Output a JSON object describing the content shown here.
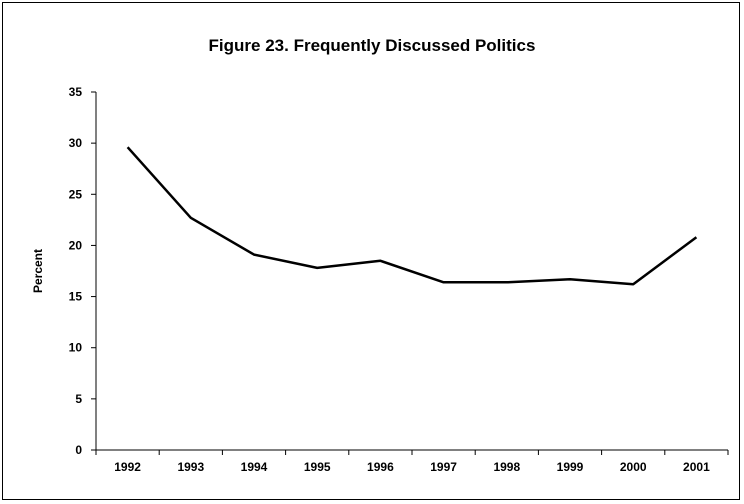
{
  "chart_data": {
    "type": "line",
    "title": "Figure 23. Frequently Discussed Politics",
    "xlabel": "",
    "ylabel": "Percent",
    "categories": [
      "1992",
      "1993",
      "1994",
      "1995",
      "1996",
      "1997",
      "1998",
      "1999",
      "2000",
      "2001"
    ],
    "series": [
      {
        "values": [
          29.6,
          22.7,
          19.1,
          17.8,
          18.5,
          16.4,
          16.4,
          16.7,
          16.2,
          20.8
        ]
      }
    ],
    "ylim": [
      0,
      35
    ],
    "yticks": [
      0,
      5,
      10,
      15,
      20,
      25,
      30,
      35
    ],
    "grid": false,
    "legend": "none",
    "line_color": "#000000"
  }
}
